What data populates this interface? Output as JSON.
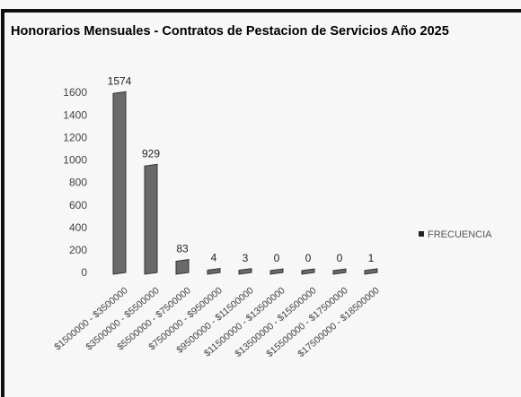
{
  "chart_data": {
    "type": "bar",
    "title": "Honorarios Mensuales - Contratos de Pestacion de Servicios Año 2025",
    "categories": [
      "$1500000 - $3500000",
      "$3500000 - $5500000",
      "$5500000 - $7500000",
      "$7500000 - $9500000",
      "$9500000 - $11500000",
      "$11500000 - $13500000",
      "$13500000 - $15500000",
      "$15500000 - $17500000",
      "$17500000 - $18500000"
    ],
    "series": [
      {
        "name": "FRECUENCIA",
        "color": "#6a6a6a",
        "values": [
          1574,
          929,
          83,
          4,
          3,
          0,
          0,
          0,
          1
        ]
      }
    ],
    "ylim": [
      0,
      1600
    ],
    "yticks": [
      0,
      200,
      400,
      600,
      800,
      1000,
      1200,
      1400,
      1600
    ],
    "legend": "right"
  }
}
